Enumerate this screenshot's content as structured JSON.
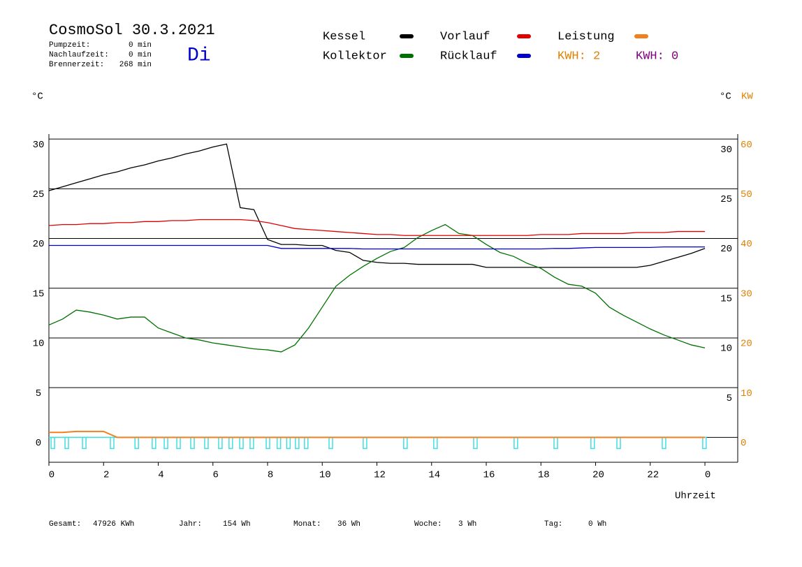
{
  "header": {
    "title": "CosmoSol 30.3.2021",
    "day": "Di",
    "stats": [
      {
        "label": "Pumpzeit:",
        "value": "0 min"
      },
      {
        "label": "Nachlaufzeit:",
        "value": "0 min"
      },
      {
        "label": "Brennerzeit:",
        "value": "268 min"
      }
    ],
    "kwh": [
      {
        "label": "KWH: 2",
        "color": "#e08000"
      },
      {
        "label": "KWH: 0",
        "color": "#800080"
      }
    ]
  },
  "footer": [
    {
      "label": "Gesamt:",
      "value": "47926 KWh"
    },
    {
      "label": "Jahr:",
      "value": "154 Wh"
    },
    {
      "label": "Monat:",
      "value": "36 Wh"
    },
    {
      "label": "Woche:",
      "value": "3 Wh"
    },
    {
      "label": "Tag:",
      "value": "0 Wh"
    }
  ],
  "chart_data": {
    "type": "line",
    "ylabel": "°C",
    "y2label_left": "°C",
    "y2label": "KW",
    "xlabel": "Uhrzeit",
    "xlim": [
      0,
      25.2
    ],
    "xticks": [
      0,
      2,
      4,
      6,
      8,
      10,
      12,
      14,
      16,
      18,
      20,
      22,
      {
        "value": 24,
        "label": "0"
      }
    ],
    "ylim": [
      -2.5,
      30.5
    ],
    "yticks": [
      0,
      5,
      10,
      15,
      20,
      25,
      30
    ],
    "y_right_ticks": [
      5,
      10,
      15,
      20,
      25,
      30
    ],
    "y2lim": [
      -5,
      61
    ],
    "y2ticks": [
      0,
      10,
      20,
      30,
      40,
      50,
      60
    ],
    "y2color": "#e08000",
    "grid": true,
    "x": [
      0,
      0.5,
      1,
      1.5,
      2,
      2.5,
      3,
      3.5,
      4,
      4.5,
      5,
      5.5,
      6,
      6.5,
      7,
      7.5,
      8,
      8.5,
      9,
      9.5,
      10,
      10.5,
      11,
      11.5,
      12,
      12.5,
      13,
      13.5,
      14,
      14.5,
      15,
      15.5,
      16,
      16.5,
      17,
      17.5,
      18,
      18.5,
      19,
      19.5,
      20,
      20.5,
      21,
      21.5,
      22,
      22.5,
      23,
      23.5,
      24
    ],
    "series": [
      {
        "name": "Kessel",
        "color": "#000000",
        "values": [
          24.8,
          25.2,
          25.6,
          26.0,
          26.4,
          26.7,
          27.1,
          27.4,
          27.8,
          28.1,
          28.5,
          28.8,
          29.2,
          29.5,
          23.1,
          22.9,
          19.9,
          19.4,
          19.4,
          19.3,
          19.3,
          18.8,
          18.6,
          17.8,
          17.6,
          17.5,
          17.5,
          17.4,
          17.4,
          17.4,
          17.4,
          17.4,
          17.1,
          17.1,
          17.1,
          17.1,
          17.1,
          17.1,
          17.1,
          17.1,
          17.1,
          17.1,
          17.1,
          17.1,
          17.3,
          17.7,
          18.1,
          18.5,
          19.0
        ]
      },
      {
        "name": "Kollektor",
        "color": "#007000",
        "values": [
          11.3,
          11.9,
          12.8,
          12.6,
          12.3,
          11.9,
          12.1,
          12.1,
          11.0,
          10.5,
          10.0,
          9.8,
          9.5,
          9.3,
          9.1,
          8.9,
          8.8,
          8.6,
          9.3,
          11.0,
          13.1,
          15.2,
          16.3,
          17.2,
          18.0,
          18.7,
          19.1,
          20.1,
          20.8,
          21.4,
          20.5,
          20.3,
          19.4,
          18.6,
          18.2,
          17.5,
          17.0,
          16.1,
          15.4,
          15.2,
          14.5,
          13.1,
          12.3,
          11.6,
          10.9,
          10.3,
          9.8,
          9.3,
          9.0
        ]
      },
      {
        "name": "Vorlauf",
        "color": "#e00000",
        "values": [
          21.3,
          21.4,
          21.4,
          21.5,
          21.5,
          21.6,
          21.6,
          21.7,
          21.7,
          21.8,
          21.8,
          21.9,
          21.9,
          21.9,
          21.9,
          21.8,
          21.6,
          21.3,
          21.0,
          20.9,
          20.8,
          20.7,
          20.6,
          20.5,
          20.4,
          20.4,
          20.3,
          20.3,
          20.3,
          20.3,
          20.3,
          20.3,
          20.3,
          20.3,
          20.3,
          20.3,
          20.4,
          20.4,
          20.4,
          20.5,
          20.5,
          20.5,
          20.5,
          20.6,
          20.6,
          20.6,
          20.7,
          20.7,
          20.7
        ]
      },
      {
        "name": "Rücklauf",
        "color": "#0000d0",
        "values": [
          19.3,
          19.3,
          19.3,
          19.3,
          19.3,
          19.3,
          19.3,
          19.3,
          19.3,
          19.3,
          19.3,
          19.3,
          19.3,
          19.3,
          19.3,
          19.3,
          19.3,
          19.0,
          19.0,
          19.0,
          19.0,
          19.0,
          19.0,
          18.95,
          18.95,
          18.95,
          18.95,
          18.95,
          18.95,
          18.95,
          18.95,
          18.95,
          18.95,
          18.95,
          18.95,
          18.95,
          18.95,
          19.0,
          19.0,
          19.05,
          19.1,
          19.1,
          19.1,
          19.1,
          19.1,
          19.15,
          19.15,
          19.15,
          19.15
        ]
      },
      {
        "name": "Leistung",
        "color": "#f08020",
        "axis": "y2",
        "values": [
          1.0,
          1.0,
          1.2,
          1.2,
          1.2,
          0,
          0,
          0,
          0,
          0,
          0,
          0,
          0,
          0,
          0,
          0,
          0,
          0,
          0,
          0,
          0,
          0,
          0,
          0,
          0,
          0,
          0,
          0,
          0,
          0,
          0,
          0,
          0,
          0,
          0,
          0,
          0,
          0,
          0,
          0,
          0,
          0,
          0,
          0,
          0,
          0,
          0,
          0,
          0
        ]
      }
    ],
    "pump_color": "#40e0e0",
    "pump_x": [
      0.13,
      0.64,
      1.28,
      2.3,
      3.2,
      3.83,
      4.27,
      4.73,
      5.24,
      5.75,
      6.26,
      6.64,
      7.03,
      7.41,
      8.0,
      8.4,
      8.75,
      9.07,
      9.4,
      10.3,
      11.55,
      13.03,
      14.13,
      15.59,
      17.07,
      18.53,
      19.88,
      20.83,
      22.49,
      23.97
    ]
  }
}
